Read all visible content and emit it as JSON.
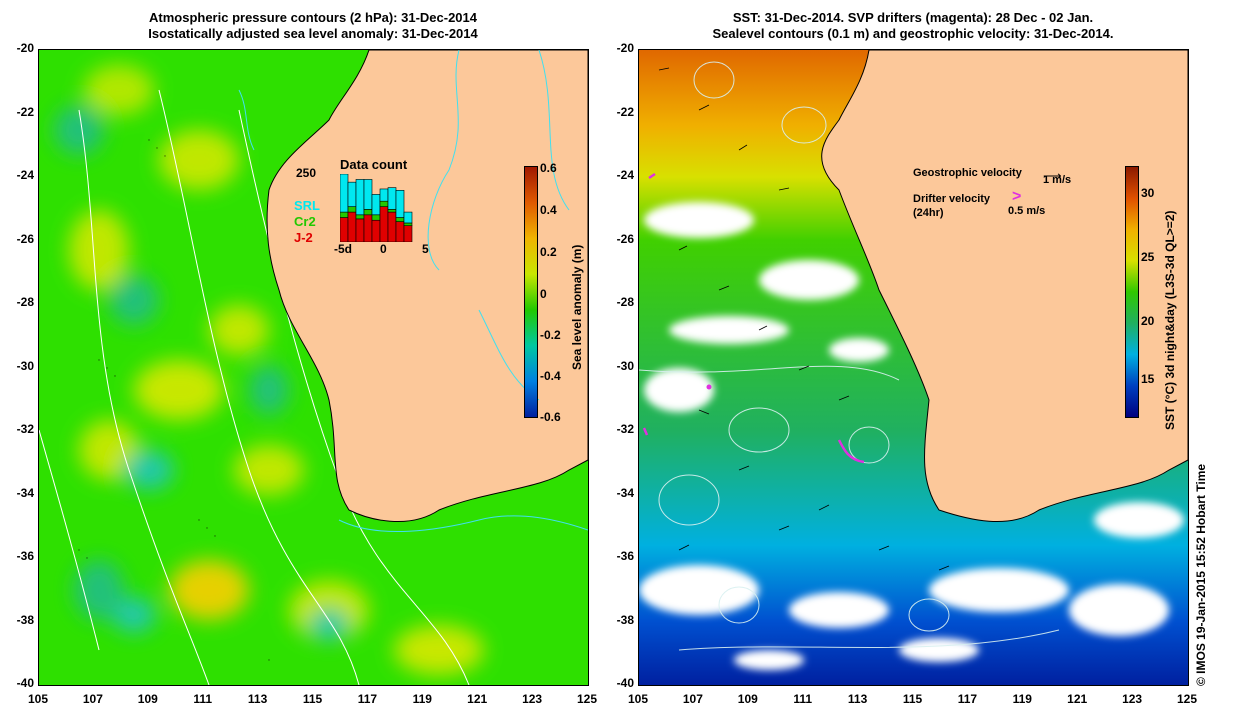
{
  "left_panel": {
    "title_line1": "Atmospheric pressure contours (2 hPa): 31-Dec-2014",
    "title_line2": "Isostatically adjusted sea level anomaly: 31-Dec-2014",
    "colorbar": {
      "label": "Sea level anomaly (m)",
      "ticks": [
        "0.6",
        "0.4",
        "0.2",
        "0",
        "-0.2",
        "-0.4",
        "-0.6"
      ],
      "colors": [
        "#a01800",
        "#e05a00",
        "#f0b400",
        "#c8e600",
        "#22c800",
        "#00c8a0",
        "#0080e0",
        "#0020a0"
      ]
    },
    "inset": {
      "title": "Data count",
      "max_label": "250",
      "series_labels": [
        "SRL",
        "Cr2",
        "J-2"
      ],
      "series_colors": [
        "#00e8f0",
        "#22c800",
        "#e00000"
      ],
      "x_ticks": [
        "-5d",
        "0",
        "5"
      ],
      "bars": [
        {
          "j2": 90,
          "cr2": 20,
          "srl": 140
        },
        {
          "j2": 110,
          "cr2": 20,
          "srl": 90
        },
        {
          "j2": 85,
          "cr2": 15,
          "srl": 130
        },
        {
          "j2": 100,
          "cr2": 20,
          "srl": 110
        },
        {
          "j2": 80,
          "cr2": 20,
          "srl": 75
        },
        {
          "j2": 130,
          "cr2": 20,
          "srl": 45
        },
        {
          "j2": 110,
          "cr2": 10,
          "srl": 80
        },
        {
          "j2": 75,
          "cr2": 15,
          "srl": 100
        },
        {
          "j2": 60,
          "cr2": 10,
          "srl": 40
        }
      ]
    }
  },
  "right_panel": {
    "title_line1": "SST: 31-Dec-2014. SVP drifters (magenta): 28 Dec - 02 Jan.",
    "title_line2": "Sealevel contours (0.1 m) and geostrophic velocity: 31-Dec-2014.",
    "colorbar": {
      "label": "SST (°C) 3d night&day (L3S-3d QL>=2)",
      "ticks": [
        "30",
        "25",
        "20",
        "15"
      ],
      "colors": [
        "#8b1a00",
        "#e05000",
        "#f0b000",
        "#d8e000",
        "#30c800",
        "#20b060",
        "#00b0e0",
        "#0040c0",
        "#000080"
      ]
    },
    "legend": {
      "geo_label": "Geostrophic velocity",
      "geo_scale": "1 m/s",
      "drifter_label": "Drifter velocity",
      "drifter_sub": "(24hr)",
      "drifter_scale": "0.5 m/s"
    }
  },
  "axes": {
    "lat_ticks": [
      "-20",
      "-22",
      "-24",
      "-26",
      "-28",
      "-30",
      "-32",
      "-34",
      "-36",
      "-38",
      "-40"
    ],
    "lon_ticks": [
      "105",
      "107",
      "109",
      "111",
      "113",
      "115",
      "117",
      "119",
      "121",
      "123",
      "125"
    ]
  },
  "credit": "© IMOS 19-Jan-2015 15:52 Hobart Time",
  "colors": {
    "land": "#fcc89a",
    "ocean_green": "#2ee000",
    "contour": "#ffffff",
    "coast_contour": "#40e0f0",
    "drifter": "#e030e0"
  }
}
